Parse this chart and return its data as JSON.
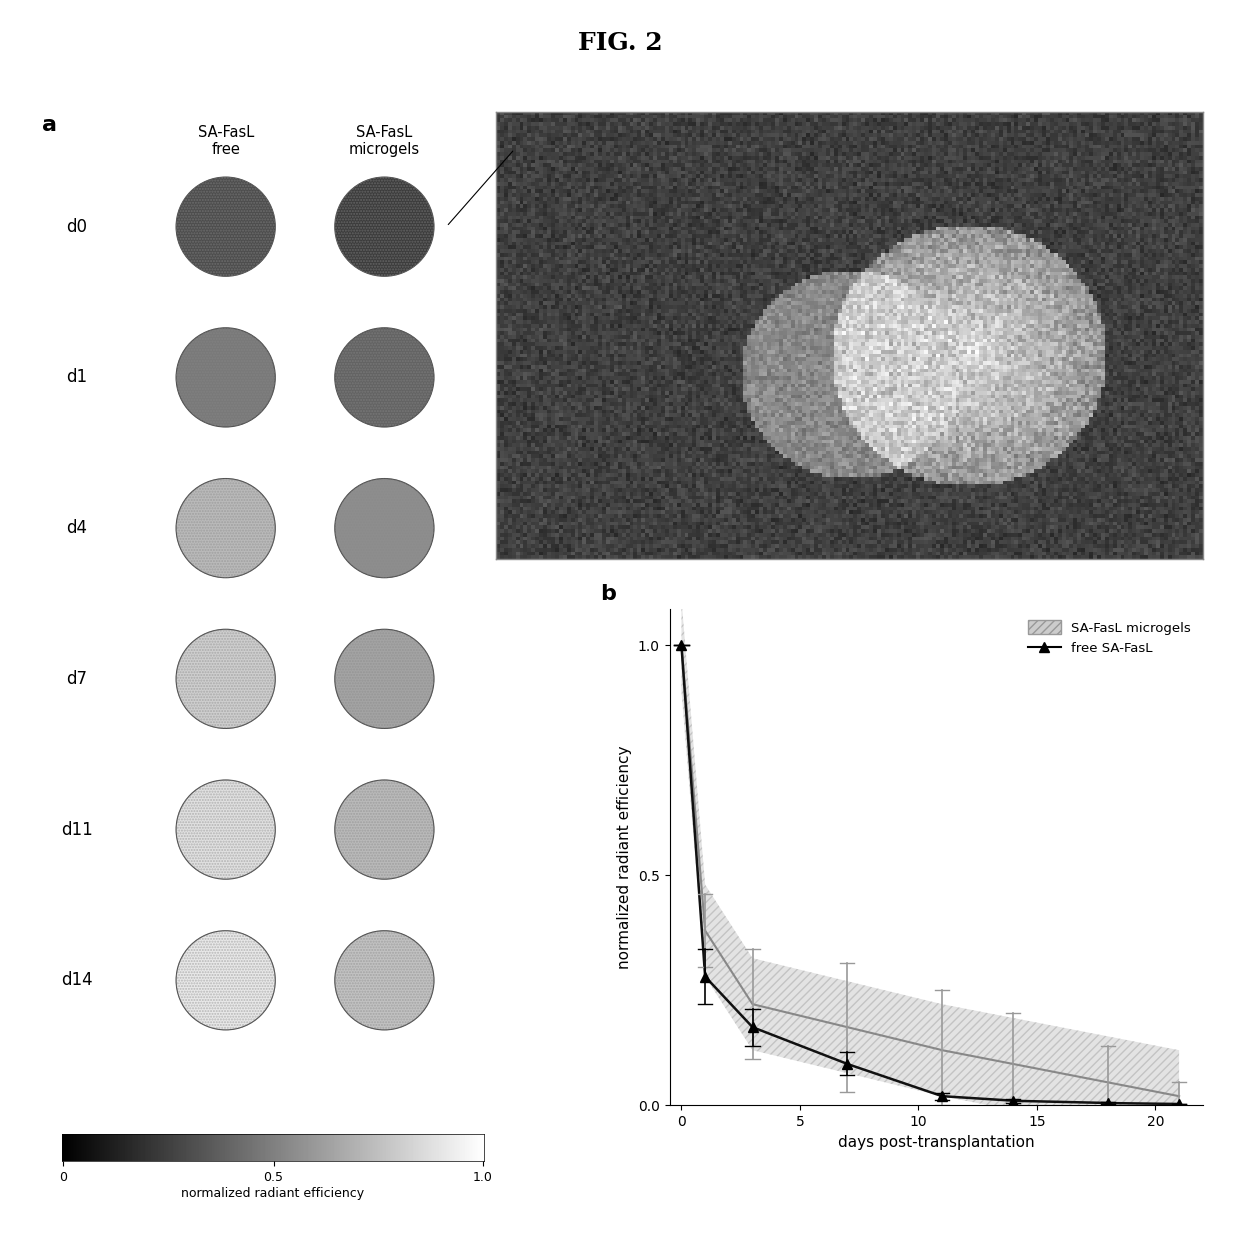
{
  "title": "FIG. 2",
  "title_fontsize": 18,
  "panel_a_label": "a",
  "panel_b_label": "b",
  "row_labels": [
    "d0",
    "d1",
    "d4",
    "d7",
    "d11",
    "d14"
  ],
  "col_labels_free": "SA-FasL\nfree",
  "col_labels_micro": "SA-FasL\nmicrogels",
  "colorbar_label": "normalized radiant efficiency",
  "xlabel": "days post-transplantation",
  "ylabel": "normalized radiant efficiency",
  "ylim": [
    0,
    1.08
  ],
  "xlim": [
    -0.5,
    22
  ],
  "xticks": [
    0,
    5,
    10,
    15,
    20
  ],
  "yticks": [
    0.0,
    0.5,
    1.0
  ],
  "free_x": [
    0,
    1,
    3,
    7,
    11,
    14,
    18,
    21
  ],
  "free_y": [
    1.0,
    0.28,
    0.17,
    0.09,
    0.02,
    0.01,
    0.005,
    0.003
  ],
  "free_yerr": [
    0.0,
    0.06,
    0.04,
    0.025,
    0.008,
    0.004,
    0.002,
    0.001
  ],
  "micro_x": [
    0,
    1,
    3,
    7,
    11,
    14,
    18,
    21
  ],
  "micro_y": [
    1.0,
    0.38,
    0.22,
    0.17,
    0.12,
    0.09,
    0.05,
    0.02
  ],
  "micro_yerr": [
    0.0,
    0.08,
    0.12,
    0.14,
    0.13,
    0.11,
    0.08,
    0.03
  ],
  "free_curve_color": "#111111",
  "micro_curve_color": "#888888",
  "legend_micro": "SA-FasL microgels",
  "legend_free": "free SA-FasL",
  "circle_gray_free": [
    0.82,
    0.62,
    0.32,
    0.22,
    0.14,
    0.1
  ],
  "circle_gray_micro": [
    0.9,
    0.72,
    0.52,
    0.42,
    0.32,
    0.28
  ],
  "background_color": "#ffffff"
}
